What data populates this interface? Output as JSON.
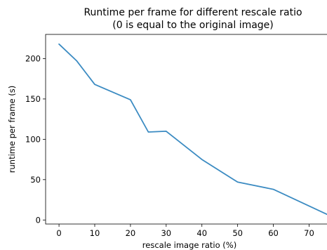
{
  "chart_data": {
    "type": "line",
    "title": "Runtime per frame for different rescale ratio",
    "subtitle": "(0 is equal to the original image)",
    "xlabel": "rescale image ratio (%)",
    "ylabel": "runtime per frame (s)",
    "xlim": [
      -3.75,
      78.75
    ],
    "ylim": [
      -5,
      230
    ],
    "xticks": [
      0,
      10,
      20,
      30,
      40,
      50,
      60,
      70
    ],
    "yticks": [
      0,
      50,
      100,
      150,
      200
    ],
    "grid": false,
    "series": [
      {
        "color": "#3b8bc2",
        "x": [
          0,
          5,
          10,
          20,
          25,
          30,
          40,
          50,
          60,
          75
        ],
        "y": [
          218,
          197,
          168,
          149,
          109,
          110,
          75,
          47,
          38,
          7
        ]
      }
    ]
  }
}
